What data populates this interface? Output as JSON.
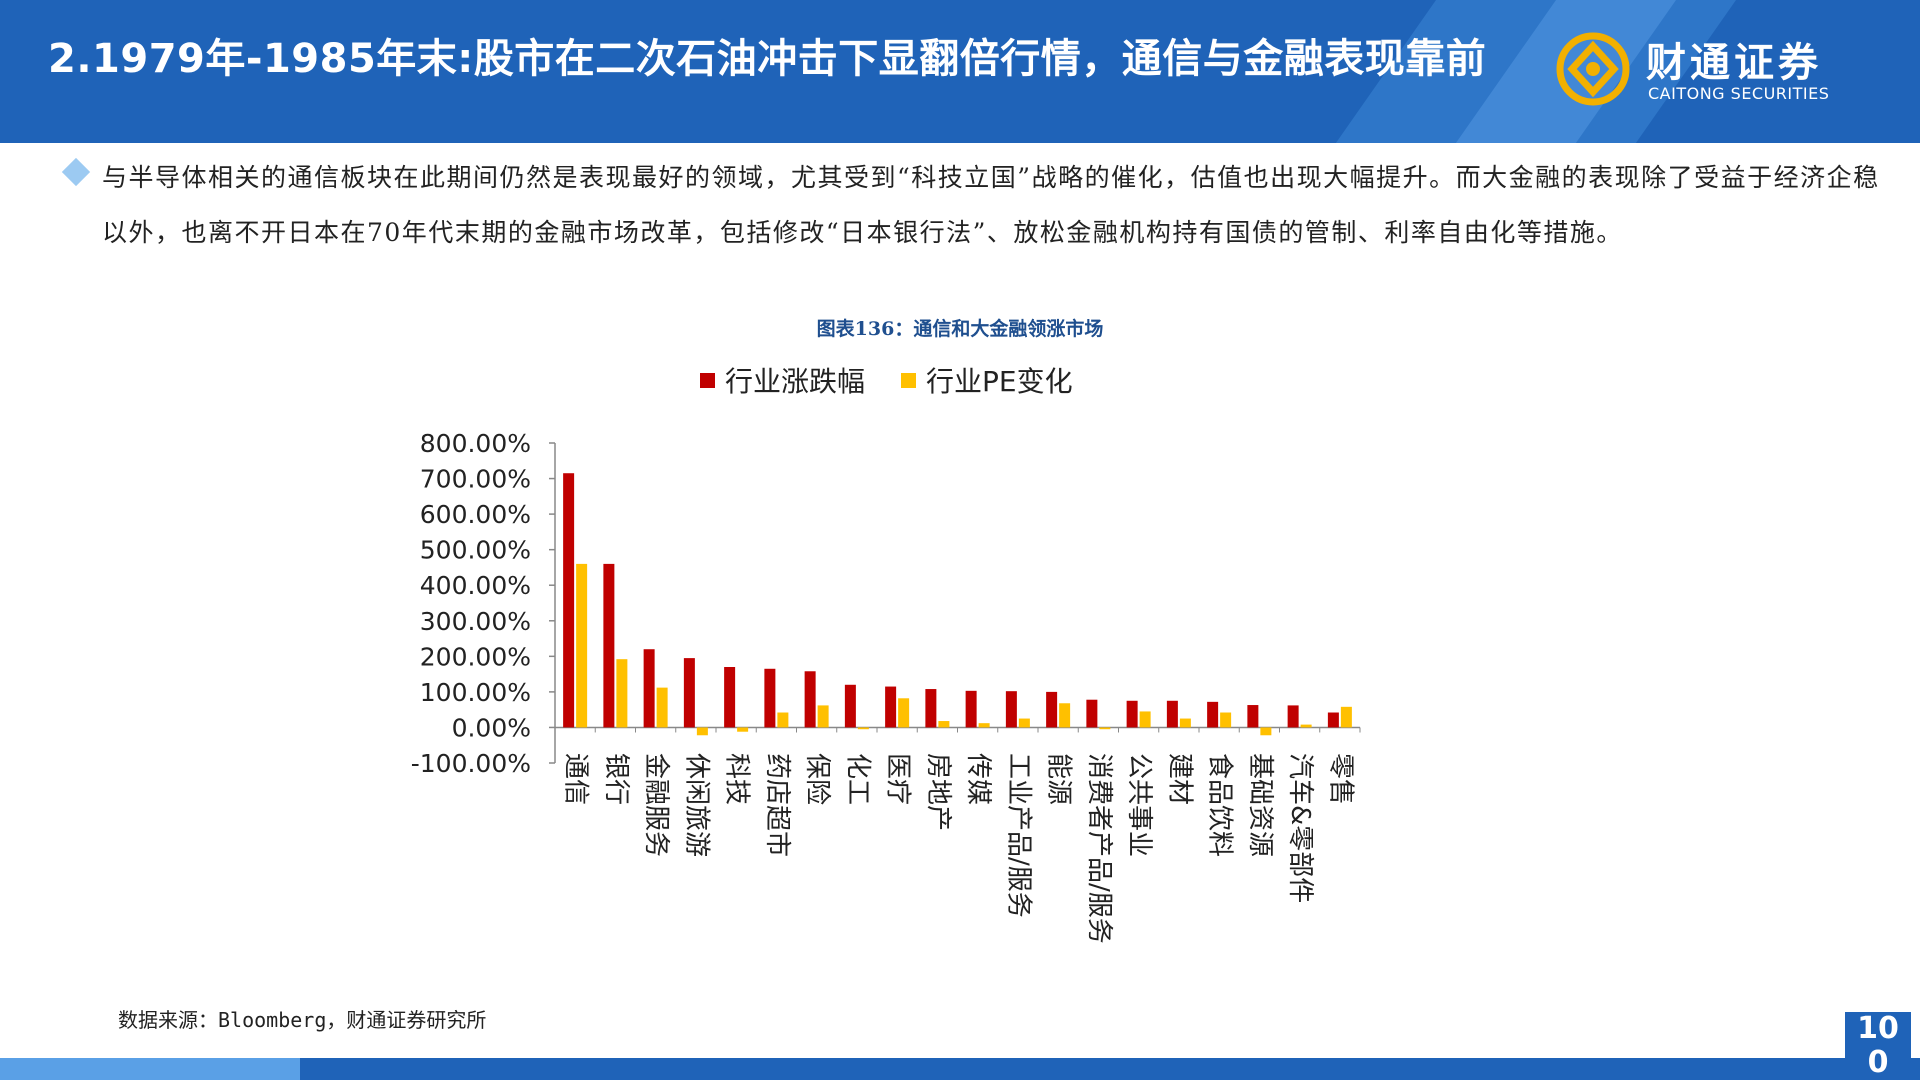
{
  "header": {
    "title": "2.1979年-1985年末:股市在二次石油冲击下显翻倍行情，通信与金融表现靠前"
  },
  "logo": {
    "name_cn": "财通证券",
    "name_en": "CAITONG SECURITIES"
  },
  "body_text": "与半导体相关的通信板块在此期间仍然是表现最好的领域，尤其受到“科技立国”战略的催化，估值也出现大幅提升。而大金融的表现除了受益于经济企稳以外，也离不开日本在70年代末期的金融市场改革，包括修改“日本银行法”、放松金融机构持有国债的管制、利率自由化等措施。",
  "figure_title": "图表136：通信和大金融领涨市场",
  "source": "数据来源：Bloomberg，财通证券研究所",
  "page_number": "10\n0",
  "colors": {
    "header_bg": "#1f63b8",
    "series_1": "#c00000",
    "series_2": "#ffc000"
  },
  "chart_data": {
    "type": "bar",
    "title": "",
    "xlabel": "",
    "ylabel": "",
    "ylim": [
      -100,
      800
    ],
    "yticks": [
      "-100.00%",
      "0.00%",
      "100.00%",
      "200.00%",
      "300.00%",
      "400.00%",
      "500.00%",
      "600.00%",
      "700.00%",
      "800.00%"
    ],
    "legend": "top",
    "grid": false,
    "categories": [
      "通信",
      "银行",
      "金融服务",
      "休闲旅游",
      "科技",
      "药店超市",
      "保险",
      "化工",
      "医疗",
      "房地产",
      "传媒",
      "工业产品/服务",
      "能源",
      "消费者产品/服务",
      "公共事业",
      "建材",
      "食品饮料",
      "基础资源",
      "汽车&零部件",
      "零售"
    ],
    "series": [
      {
        "name": "行业涨跌幅",
        "values": [
          715,
          460,
          220,
          195,
          170,
          165,
          158,
          120,
          115,
          108,
          103,
          102,
          100,
          78,
          75,
          75,
          72,
          63,
          62,
          42
        ]
      },
      {
        "name": "行业PE变化",
        "values": [
          460,
          192,
          112,
          -22,
          -12,
          42,
          62,
          -5,
          82,
          18,
          12,
          25,
          68,
          -5,
          45,
          25,
          42,
          -22,
          8,
          58
        ]
      }
    ]
  }
}
